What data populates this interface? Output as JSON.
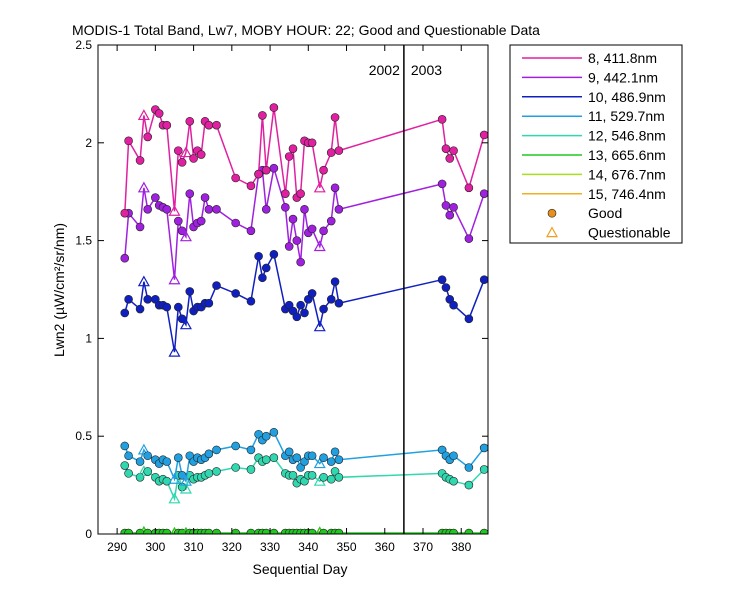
{
  "chart_data": {
    "type": "line",
    "title": "MODIS-1 Total Band, Lw7, MOBY HOUR: 22;  Good and Questionable Data",
    "xlabel": "Sequential Day",
    "ylabel": "Lwn2 (µW/cm²/sr/nm)",
    "xlim": [
      285,
      387
    ],
    "ylim": [
      0,
      2.5
    ],
    "xticks": [
      290,
      300,
      310,
      320,
      330,
      340,
      350,
      360,
      370,
      380
    ],
    "yticks": [
      0,
      0.5,
      1,
      1.5,
      2,
      2.5
    ],
    "grid": false,
    "legend_position": "outside-right",
    "year_divider": {
      "x": 365,
      "left_label": "2002",
      "right_label": "2003"
    },
    "x": [
      292,
      293,
      296,
      297,
      298,
      300,
      301,
      302,
      303,
      305,
      306,
      307,
      308,
      309,
      310,
      311,
      312,
      313,
      314,
      316,
      321,
      325,
      327,
      328,
      329,
      331,
      334,
      335,
      336,
      337,
      338,
      339,
      340,
      341,
      343,
      344,
      346,
      347,
      348,
      375,
      376,
      377,
      378,
      382,
      386
    ],
    "questionable_x": [
      297,
      305,
      308,
      343
    ],
    "marker_legend": {
      "good": "Good",
      "questionable": "Questionable"
    },
    "series": [
      {
        "name": "8, 411.8nm",
        "color": "#e020a0",
        "values": [
          1.64,
          2.01,
          1.91,
          2.14,
          2.03,
          2.17,
          2.15,
          2.09,
          2.09,
          1.65,
          1.96,
          1.9,
          1.95,
          2.11,
          1.92,
          1.96,
          1.94,
          2.11,
          2.09,
          2.09,
          1.82,
          1.78,
          1.84,
          2.14,
          1.86,
          2.18,
          1.74,
          1.93,
          1.97,
          1.72,
          1.74,
          2.01,
          2.0,
          2.0,
          1.77,
          1.86,
          1.95,
          2.13,
          1.96,
          2.12,
          1.97,
          1.92,
          1.96,
          1.77,
          2.04
        ]
      },
      {
        "name": "9, 442.1nm",
        "color": "#a020e0",
        "values": [
          1.41,
          1.64,
          1.57,
          1.77,
          1.66,
          1.72,
          1.68,
          1.67,
          1.66,
          1.3,
          1.6,
          1.55,
          1.52,
          1.74,
          1.57,
          1.59,
          1.6,
          1.72,
          1.66,
          1.66,
          1.59,
          1.55,
          1.84,
          1.86,
          1.66,
          1.87,
          1.67,
          1.47,
          1.61,
          1.5,
          1.39,
          1.66,
          1.54,
          1.56,
          1.47,
          1.55,
          1.6,
          1.77,
          1.66,
          1.79,
          1.68,
          1.63,
          1.67,
          1.51,
          1.74
        ]
      },
      {
        "name": "10, 486.9nm",
        "color": "#1020c0",
        "values": [
          1.13,
          1.2,
          1.15,
          1.29,
          1.2,
          1.2,
          1.17,
          1.17,
          1.16,
          0.93,
          1.16,
          1.1,
          1.07,
          1.24,
          1.14,
          1.16,
          1.16,
          1.18,
          1.18,
          1.27,
          1.23,
          1.19,
          1.42,
          1.31,
          1.36,
          1.43,
          1.15,
          1.17,
          1.14,
          1.11,
          1.17,
          1.13,
          1.2,
          1.23,
          1.06,
          1.15,
          1.2,
          1.29,
          1.18,
          1.3,
          1.26,
          1.2,
          1.17,
          1.1,
          1.3
        ]
      },
      {
        "name": "11, 529.7nm",
        "color": "#20a0e0",
        "values": [
          0.45,
          0.4,
          0.37,
          0.43,
          0.4,
          0.38,
          0.36,
          0.38,
          0.37,
          0.28,
          0.39,
          0.3,
          0.27,
          0.4,
          0.37,
          0.39,
          0.38,
          0.39,
          0.41,
          0.43,
          0.45,
          0.43,
          0.51,
          0.48,
          0.5,
          0.52,
          0.4,
          0.42,
          0.38,
          0.39,
          0.34,
          0.37,
          0.4,
          0.4,
          0.36,
          0.39,
          0.37,
          0.42,
          0.38,
          0.43,
          0.4,
          0.38,
          0.4,
          0.34,
          0.44
        ]
      },
      {
        "name": "12, 546.8nm",
        "color": "#30d8b0",
        "values": [
          0.35,
          0.31,
          0.29,
          0.32,
          0.32,
          0.29,
          0.27,
          0.28,
          0.27,
          0.18,
          0.3,
          0.24,
          0.23,
          0.3,
          0.28,
          0.29,
          0.29,
          0.3,
          0.31,
          0.32,
          0.34,
          0.33,
          0.39,
          0.37,
          0.38,
          0.39,
          0.31,
          0.3,
          0.3,
          0.26,
          0.28,
          0.27,
          0.3,
          0.3,
          0.27,
          0.29,
          0.28,
          0.32,
          0.29,
          0.31,
          0.29,
          0.28,
          0.27,
          0.25,
          0.33
        ]
      },
      {
        "name": "13, 665.6nm",
        "color": "#20c820",
        "values": [
          0.005,
          0.005,
          0.005,
          0.01,
          0.005,
          0.005,
          0.005,
          0.005,
          0.005,
          0.005,
          0.005,
          0.005,
          0.005,
          0.005,
          0.005,
          0.005,
          0.005,
          0.005,
          0.005,
          0.005,
          0.005,
          0.005,
          0.005,
          0.005,
          0.005,
          0.005,
          0.005,
          0.005,
          0.005,
          0.005,
          0.005,
          0.005,
          0.005,
          0.005,
          0.008,
          0.005,
          0.005,
          0.005,
          0.005,
          0.005,
          0.005,
          0.005,
          0.005,
          0.005,
          0.005
        ]
      },
      {
        "name": "14, 676.7nm",
        "color": "#a8e020",
        "values": [
          0.004,
          0.004,
          0.004,
          0.008,
          0.004,
          0.004,
          0.004,
          0.004,
          0.004,
          0.004,
          0.004,
          0.004,
          0.004,
          0.004,
          0.004,
          0.004,
          0.004,
          0.004,
          0.004,
          0.004,
          0.004,
          0.004,
          0.004,
          0.004,
          0.004,
          0.004,
          0.004,
          0.004,
          0.004,
          0.004,
          0.004,
          0.004,
          0.004,
          0.004,
          0.006,
          0.004,
          0.004,
          0.004,
          0.004,
          0.004,
          0.004,
          0.004,
          0.004,
          0.004,
          0.004
        ]
      },
      {
        "name": "15, 746.4nm",
        "color": "#f0b020",
        "values": [
          0.002,
          0.002,
          0.002,
          0.006,
          0.002,
          0.002,
          0.002,
          0.002,
          0.002,
          0.002,
          0.002,
          0.002,
          0.002,
          0.002,
          0.002,
          0.002,
          0.002,
          0.002,
          0.002,
          0.002,
          0.002,
          0.002,
          0.002,
          0.002,
          0.002,
          0.002,
          0.002,
          0.002,
          0.002,
          0.002,
          0.002,
          0.002,
          0.002,
          0.002,
          0.005,
          0.002,
          0.002,
          0.002,
          0.002,
          0.002,
          0.002,
          0.002,
          0.002,
          0.002,
          0.002
        ]
      }
    ]
  }
}
